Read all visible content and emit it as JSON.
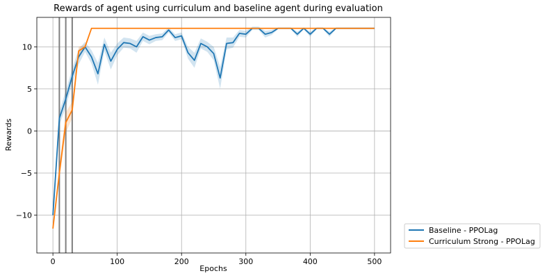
{
  "chart_data": {
    "type": "line",
    "title": "Rewards of agent using curriculum and baseline agent during evaluation",
    "xlabel": "Epochs",
    "ylabel": "Rewards",
    "xlim": [
      -25,
      525
    ],
    "ylim": [
      -14.5,
      13.5
    ],
    "xticks": [
      0,
      100,
      200,
      300,
      400,
      500
    ],
    "xtick_labels": [
      "0",
      "100",
      "200",
      "300",
      "400",
      "500"
    ],
    "yticks": [
      -10,
      -5,
      0,
      5,
      10
    ],
    "ytick_labels": [
      "−10",
      "−5",
      "0",
      "5",
      "10"
    ],
    "grid": true,
    "legend_position": "bottom-right, outside plot",
    "vertical_markers": [
      10,
      20,
      30
    ],
    "vertical_marker_color": "#7f7f7f",
    "series": [
      {
        "name": "Baseline - PPOLag",
        "color": "#1f77b4",
        "x": [
          0,
          10,
          20,
          30,
          40,
          50,
          60,
          70,
          80,
          90,
          100,
          110,
          120,
          130,
          140,
          150,
          160,
          170,
          180,
          190,
          200,
          210,
          220,
          230,
          240,
          250,
          260,
          270,
          280,
          290,
          300,
          310,
          320,
          330,
          340,
          350,
          360,
          370,
          380,
          390,
          400,
          410,
          420,
          430,
          440,
          450,
          460,
          470,
          480,
          490,
          500
        ],
        "y": [
          -10,
          1.5,
          3.8,
          6.5,
          8.8,
          10,
          8.8,
          6.8,
          10.3,
          8.3,
          9.7,
          10.5,
          10.4,
          10,
          11.2,
          10.8,
          11.1,
          11.2,
          12.0,
          11.1,
          11.3,
          9.3,
          8.4,
          10.4,
          10.0,
          9.2,
          6.3,
          10.4,
          10.5,
          11.6,
          11.5,
          12.2,
          12.2,
          11.5,
          11.7,
          12.2,
          12.2,
          12.2,
          11.5,
          12.2,
          11.5,
          12.2,
          12.2,
          11.5,
          12.2,
          12.2,
          12.2,
          12.2,
          12.2,
          12.2,
          12.2
        ],
        "band_half_width": [
          0.1,
          0.8,
          1.0,
          0.9,
          0.9,
          0.6,
          0.8,
          1.3,
          0.8,
          1.0,
          0.7,
          0.6,
          0.6,
          0.7,
          0.5,
          0.5,
          0.4,
          0.4,
          0.3,
          0.4,
          0.4,
          0.7,
          0.9,
          0.6,
          0.6,
          0.8,
          1.3,
          0.7,
          0.6,
          0.4,
          0.4,
          0.2,
          0.2,
          0.4,
          0.3,
          0.1,
          0.1,
          0.1,
          0.3,
          0.1,
          0.3,
          0.1,
          0.1,
          0.3,
          0.1,
          0.1,
          0.1,
          0.1,
          0.1,
          0.1,
          0.1
        ]
      },
      {
        "name": "Curriculum Strong - PPOLag",
        "color": "#ff7f0e",
        "x": [
          0,
          10,
          20,
          30,
          40,
          50,
          60,
          70,
          80,
          90,
          100,
          110,
          120,
          130,
          140,
          150,
          160,
          170,
          180,
          190,
          200,
          210,
          220,
          230,
          240,
          250,
          260,
          270,
          280,
          290,
          300,
          310,
          320,
          330,
          340,
          350,
          360,
          370,
          380,
          390,
          400,
          410,
          420,
          430,
          440,
          450,
          460,
          470,
          480,
          490,
          500
        ],
        "y": [
          -11.6,
          -5,
          1,
          2.5,
          9.5,
          10,
          12.2,
          12.2,
          12.2,
          12.2,
          12.2,
          12.2,
          12.2,
          12.2,
          12.2,
          12.2,
          12.2,
          12.2,
          12.2,
          12.2,
          12.2,
          12.2,
          12.2,
          12.2,
          12.2,
          12.2,
          12.2,
          12.2,
          12.2,
          12.2,
          12.2,
          12.2,
          12.2,
          12.2,
          12.2,
          12.2,
          12.2,
          12.2,
          12.2,
          12.2,
          12.2,
          12.2,
          12.2,
          12.2,
          12.2,
          12.2,
          12.2,
          12.2,
          12.2,
          12.2,
          12.2
        ],
        "band_half_width": [
          0.1,
          0.8,
          1.2,
          1.0,
          0.5,
          0.3,
          0.05,
          0.05,
          0.05,
          0.05,
          0.05,
          0.05,
          0.05,
          0.05,
          0.05,
          0.05,
          0.05,
          0.05,
          0.05,
          0.05,
          0.05,
          0.05,
          0.05,
          0.05,
          0.05,
          0.05,
          0.05,
          0.05,
          0.05,
          0.05,
          0.05,
          0.05,
          0.05,
          0.05,
          0.05,
          0.05,
          0.05,
          0.05,
          0.05,
          0.05,
          0.05,
          0.05,
          0.05,
          0.05,
          0.05,
          0.05,
          0.05,
          0.05,
          0.05,
          0.05,
          0.05
        ]
      }
    ]
  }
}
